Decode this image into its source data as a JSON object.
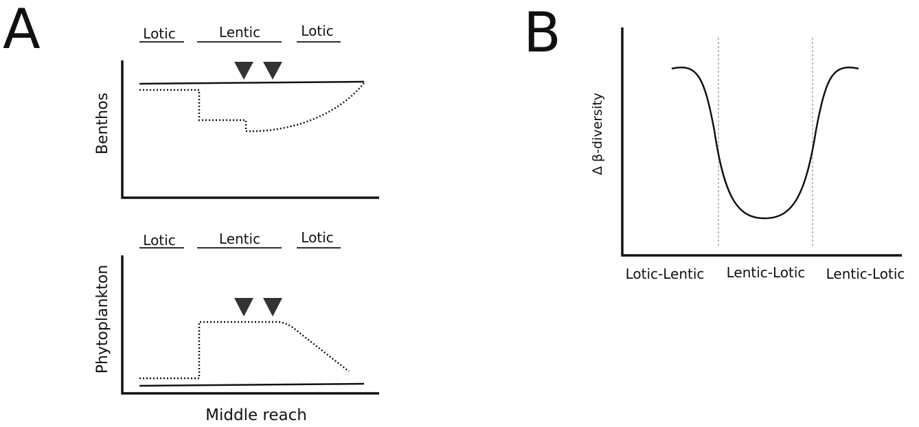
{
  "panel_a": {
    "label": "A",
    "plots": [
      {
        "y_label": "Benthos",
        "zones": [
          "Lotic",
          "Lentic",
          "Lotic"
        ]
      },
      {
        "y_label": "Phytoplankton",
        "zones": [
          "Lotic",
          "Lentic",
          "Lotic"
        ]
      }
    ],
    "x_label": "Middle reach"
  },
  "panel_b": {
    "label": "B",
    "y_label": "Δ β-diversity",
    "x_labels": [
      "Lotic-Lentic",
      "Lentic-Lotic",
      "Lentic-Lotic"
    ]
  }
}
